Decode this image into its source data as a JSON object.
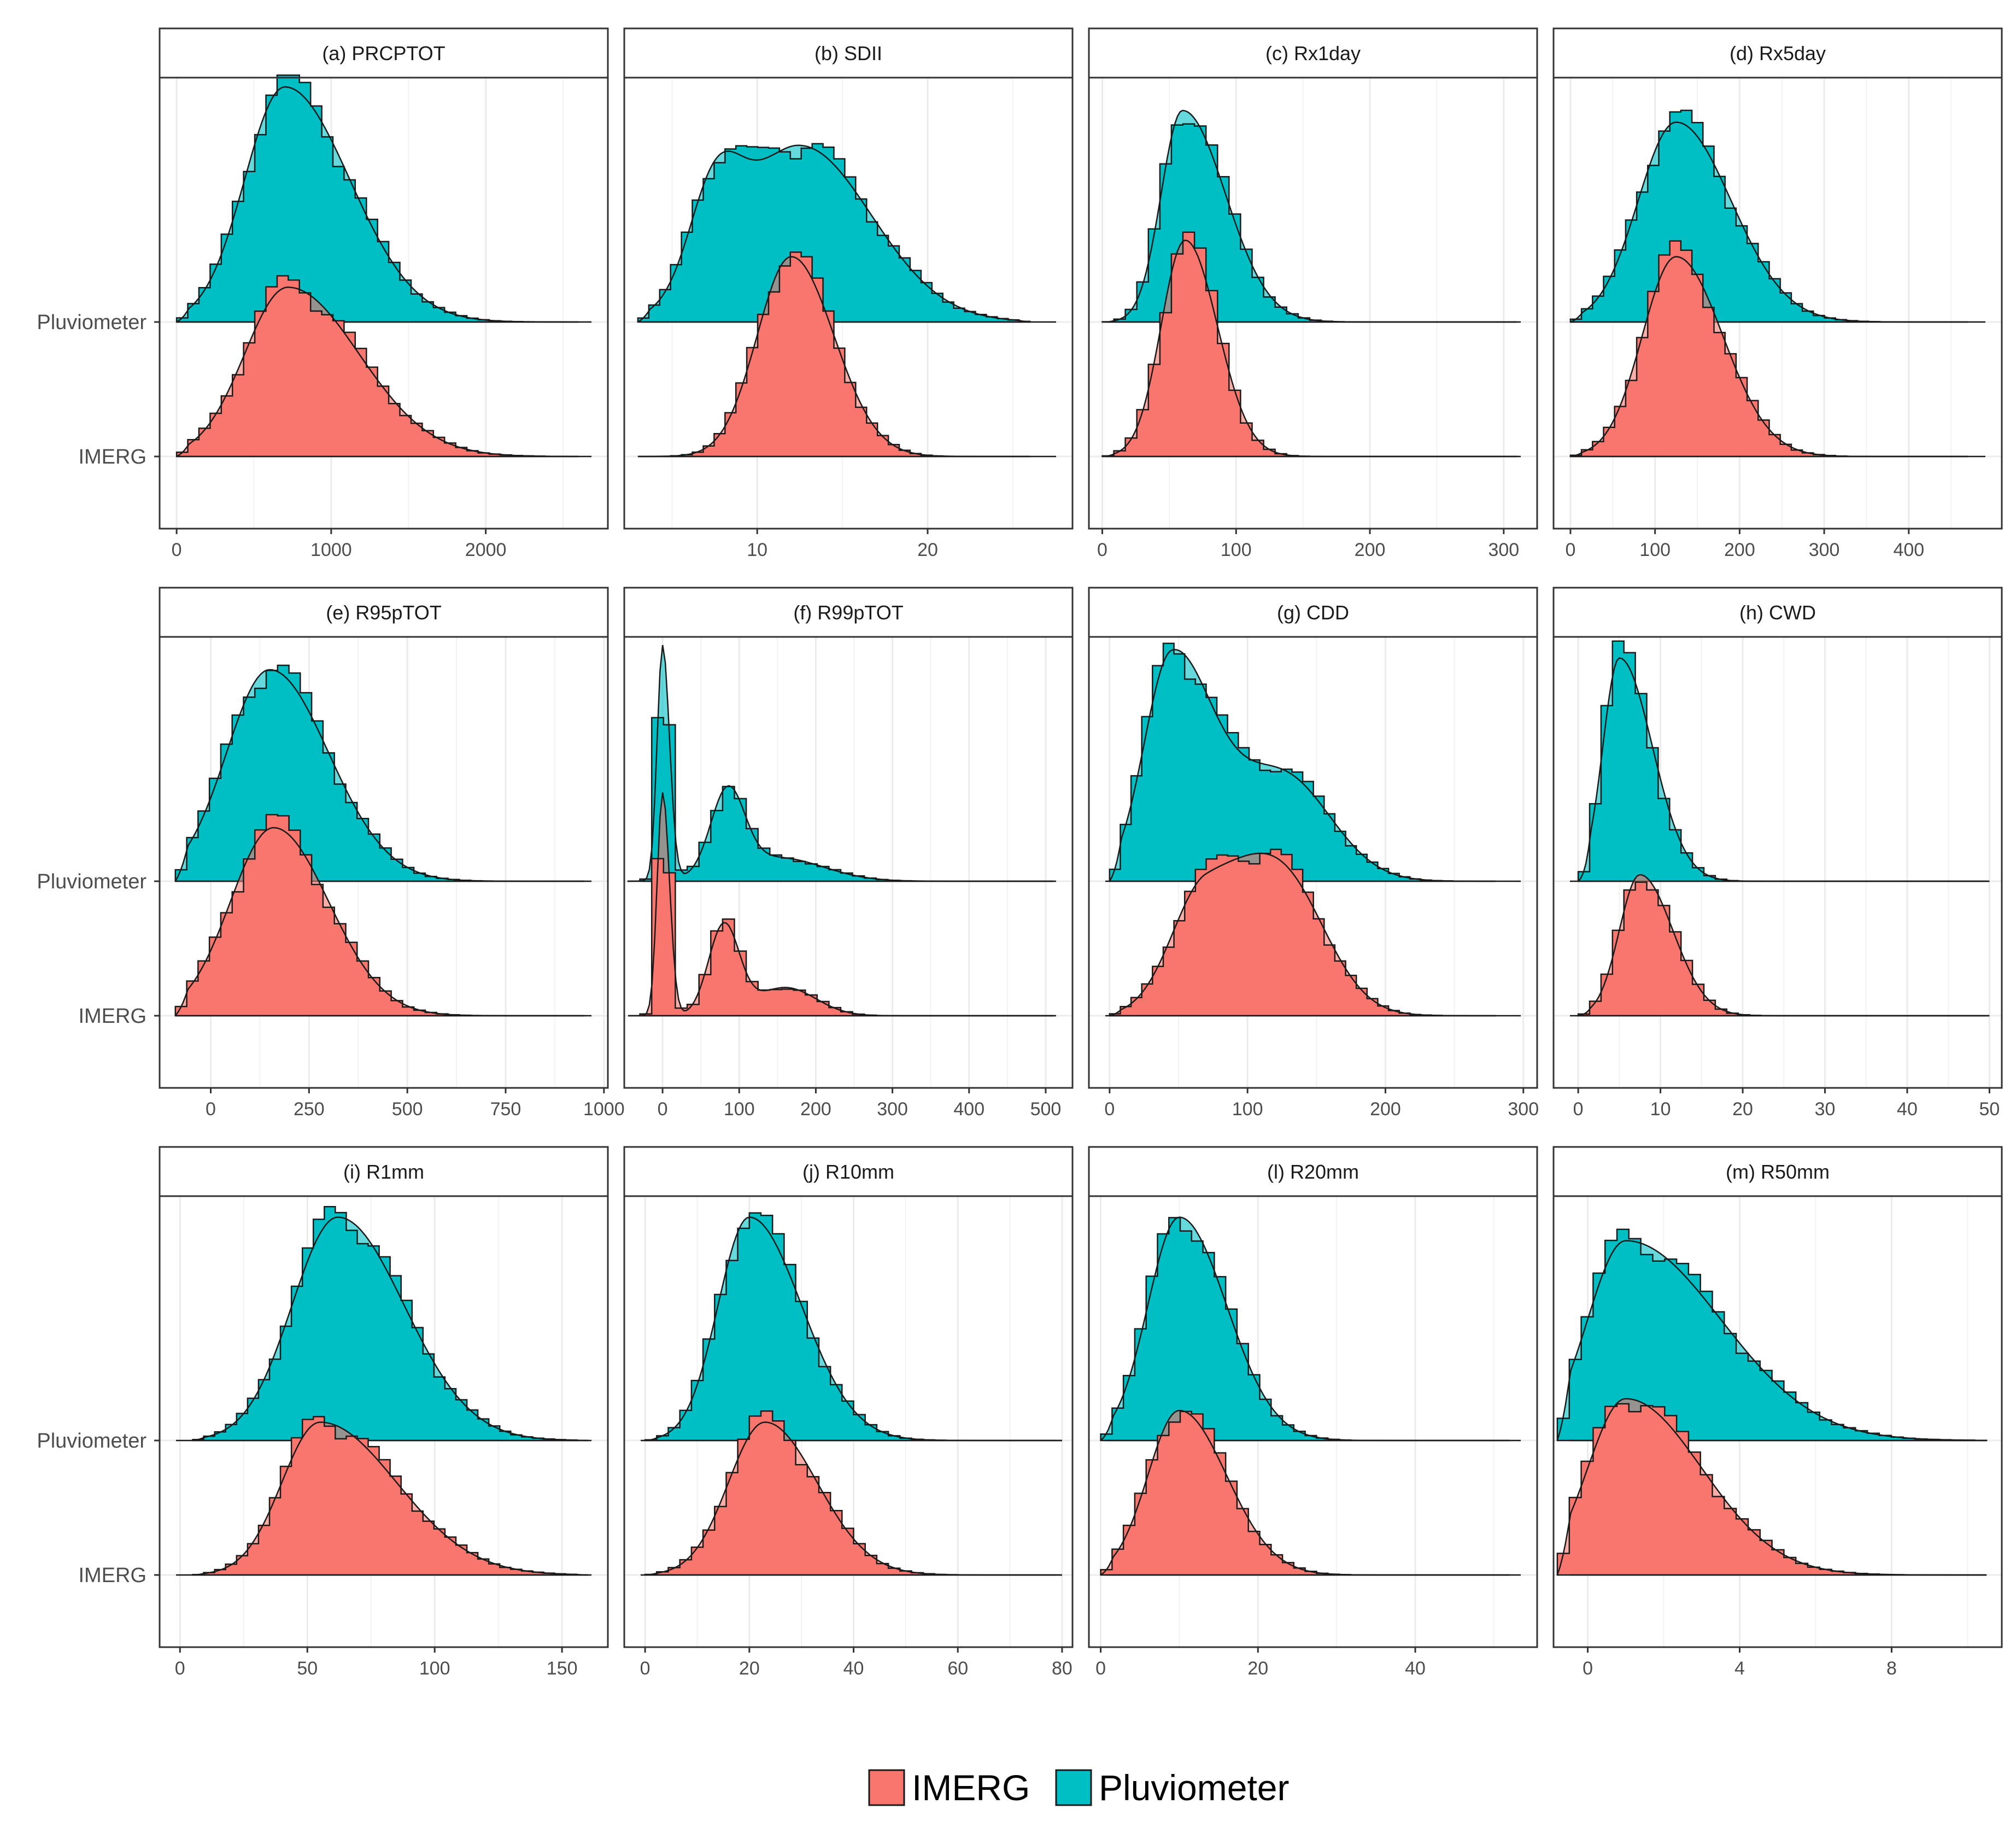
{
  "colors": {
    "imerg": "#f8766d",
    "pluviometer": "#00bfc4",
    "outline": "#1a1a1a",
    "grid": "#ebebeb",
    "strip": "#ffffff",
    "panel_border": "#333333"
  },
  "legend": {
    "items": [
      {
        "name": "IMERG",
        "color": "#f8766d"
      },
      {
        "name": "Pluviometer",
        "color": "#00bfc4"
      }
    ]
  },
  "chart_data": {
    "type": "ridgeline-histogram-density",
    "y_categories": [
      "Pluviometer",
      "IMERG"
    ],
    "series_names": [
      "IMERG",
      "Pluviometer"
    ],
    "panels": [
      {
        "title": "(a) PRCPTOT",
        "xlim": [
          -110,
          2790
        ],
        "ticks": [
          0,
          1000,
          2000
        ],
        "tick_labels": [
          "0",
          "1000",
          "2000"
        ],
        "minor_ticks": [
          500,
          1500,
          2500
        ],
        "density": {
          "Pluviometer": {
            "mode": 700,
            "peak": 1.0,
            "sd_left": 260,
            "sd_right": 420,
            "min": 0,
            "max": 2600
          },
          "IMERG": {
            "mode": 720,
            "peak": 0.72,
            "sd_left": 280,
            "sd_right": 460,
            "min": 0,
            "max": 2600
          }
        }
      },
      {
        "title": "(b) SDII",
        "xlim": [
          2.2,
          28.5
        ],
        "ticks": [
          10,
          20
        ],
        "tick_labels": [
          "10",
          "20"
        ],
        "minor_ticks": [
          5,
          15,
          25
        ],
        "density": {
          "Pluviometer": {
            "mode": 12.5,
            "peak": 0.75,
            "sd_left": 3.6,
            "sd_right": 4.2,
            "min": 3,
            "max": 26,
            "secondary": {
              "mode": 7.5,
              "peak": 0.4,
              "sd": 1.5
            }
          },
          "IMERG": {
            "mode": 12.0,
            "peak": 0.85,
            "sd_left": 2.0,
            "sd_right": 2.5,
            "min": 3,
            "max": 26
          }
        }
      },
      {
        "title": "(c) Rx1day",
        "xlim": [
          -10,
          325
        ],
        "ticks": [
          0,
          100,
          200,
          300
        ],
        "tick_labels": [
          "0",
          "100",
          "200",
          "300"
        ],
        "minor_ticks": [
          50,
          150,
          250
        ],
        "density": {
          "Pluviometer": {
            "mode": 60,
            "peak": 0.9,
            "sd_left": 16,
            "sd_right": 32,
            "min": 0,
            "max": 310
          },
          "IMERG": {
            "mode": 62,
            "peak": 0.92,
            "sd_left": 18,
            "sd_right": 24,
            "min": 0,
            "max": 310
          }
        }
      },
      {
        "title": "(d) Rx5day",
        "xlim": [
          -20,
          510
        ],
        "ticks": [
          0,
          100,
          200,
          300,
          400
        ],
        "tick_labels": [
          "0",
          "100",
          "200",
          "300",
          "400"
        ],
        "minor_ticks": [
          50,
          150,
          250,
          350,
          450
        ],
        "density": {
          "Pluviometer": {
            "mode": 125,
            "peak": 0.85,
            "sd_left": 45,
            "sd_right": 65,
            "min": 0,
            "max": 470
          },
          "IMERG": {
            "mode": 125,
            "peak": 0.85,
            "sd_left": 40,
            "sd_right": 55,
            "min": 0,
            "max": 470
          }
        }
      },
      {
        "title": "(e) R95pTOT",
        "xlim": [
          -130,
          1010
        ],
        "ticks": [
          0,
          250,
          500,
          750,
          1000
        ],
        "tick_labels": [
          "0",
          "250",
          "500",
          "750",
          "1000"
        ],
        "minor_ticks": [
          125,
          375,
          625,
          875
        ],
        "density": {
          "Pluviometer": {
            "mode": 150,
            "peak": 0.9,
            "sd_left": 110,
            "sd_right": 150,
            "min": -90,
            "max": 950
          },
          "IMERG": {
            "mode": 160,
            "peak": 0.8,
            "sd_left": 110,
            "sd_right": 140,
            "min": -90,
            "max": 950
          }
        }
      },
      {
        "title": "(f) R99pTOT",
        "xlim": [
          -50,
          535
        ],
        "ticks": [
          0,
          100,
          200,
          300,
          400,
          500
        ],
        "tick_labels": [
          "0",
          "100",
          "200",
          "300",
          "400",
          "500"
        ],
        "minor_ticks": [
          50,
          150,
          250,
          350,
          450
        ],
        "density": {
          "Pluviometer": {
            "mode": 0,
            "peak": 1.0,
            "sd_left": 7,
            "sd_right": 9,
            "min": -45,
            "max": 510,
            "secondary": {
              "mode": 85,
              "peak": 0.35,
              "sd": 22
            },
            "tail": {
              "mode": 150,
              "peak": 0.1,
              "sd": 60
            }
          },
          "IMERG": {
            "mode": 0,
            "peak": 0.95,
            "sd_left": 7,
            "sd_right": 9,
            "min": -45,
            "max": 510,
            "secondary": {
              "mode": 80,
              "peak": 0.38,
              "sd": 20
            },
            "tail": {
              "mode": 160,
              "peak": 0.12,
              "sd": 40
            }
          }
        }
      },
      {
        "title": "(g) CDD",
        "xlim": [
          -15,
          310
        ],
        "ticks": [
          0,
          100,
          200,
          300
        ],
        "tick_labels": [
          "0",
          "100",
          "200",
          "300"
        ],
        "minor_ticks": [
          50,
          150,
          250
        ],
        "density": {
          "Pluviometer": {
            "mode": 45,
            "peak": 0.95,
            "sd_left": 20,
            "sd_right": 30,
            "min": 0,
            "max": 280,
            "secondary": {
              "mode": 125,
              "peak": 0.45,
              "sd": 35
            }
          },
          "IMERG": {
            "mode": 70,
            "peak": 0.55,
            "sd_left": 25,
            "sd_right": 45,
            "min": 0,
            "max": 280,
            "secondary": {
              "mode": 130,
              "peak": 0.4,
              "sd": 30
            }
          }
        }
      },
      {
        "title": "(h) CWD",
        "xlim": [
          -3,
          51.5
        ],
        "ticks": [
          0,
          10,
          20,
          30,
          40,
          50
        ],
        "tick_labels": [
          "0",
          "10",
          "20",
          "30",
          "40",
          "50"
        ],
        "minor_ticks": [
          5,
          15,
          25,
          35,
          45
        ],
        "density": {
          "Pluviometer": {
            "mode": 5,
            "peak": 0.95,
            "sd_left": 2,
            "sd_right": 4,
            "min": 0,
            "max": 50
          },
          "IMERG": {
            "mode": 7.5,
            "peak": 0.6,
            "sd_left": 2.5,
            "sd_right": 4,
            "min": 0,
            "max": 50
          }
        }
      },
      {
        "title": "(i) R1mm",
        "xlim": [
          -8,
          168
        ],
        "ticks": [
          0,
          50,
          100,
          150
        ],
        "tick_labels": [
          "0",
          "50",
          "100",
          "150"
        ],
        "minor_ticks": [
          25,
          75,
          125
        ],
        "density": {
          "Pluviometer": {
            "mode": 62,
            "peak": 0.95,
            "sd_left": 18,
            "sd_right": 26,
            "min": 5,
            "max": 160
          },
          "IMERG": {
            "mode": 55,
            "peak": 0.65,
            "sd_left": 15,
            "sd_right": 30,
            "min": 5,
            "max": 160
          }
        }
      },
      {
        "title": "(j) R10mm",
        "xlim": [
          -4,
          82
        ],
        "ticks": [
          0,
          20,
          40,
          60,
          80
        ],
        "tick_labels": [
          "0",
          "20",
          "40",
          "60",
          "80"
        ],
        "minor_ticks": [
          10,
          30,
          50,
          70
        ],
        "density": {
          "Pluviometer": {
            "mode": 20,
            "peak": 0.95,
            "sd_left": 6,
            "sd_right": 10,
            "min": 0,
            "max": 80
          },
          "IMERG": {
            "mode": 23,
            "peak": 0.65,
            "sd_left": 7,
            "sd_right": 10,
            "min": 0,
            "max": 80
          }
        }
      },
      {
        "title": "(l) R20mm",
        "xlim": [
          -1.5,
          55.5
        ],
        "ticks": [
          0,
          20,
          40
        ],
        "tick_labels": [
          "0",
          "20",
          "40"
        ],
        "minor_ticks": [
          10,
          30,
          50
        ],
        "density": {
          "Pluviometer": {
            "mode": 10,
            "peak": 0.95,
            "sd_left": 4,
            "sd_right": 6,
            "min": 0,
            "max": 52
          },
          "IMERG": {
            "mode": 10,
            "peak": 0.7,
            "sd_left": 4,
            "sd_right": 6,
            "min": 0,
            "max": 52
          }
        }
      },
      {
        "title": "(m) R50mm",
        "xlim": [
          -0.9,
          10.9
        ],
        "ticks": [
          0,
          4,
          8
        ],
        "tick_labels": [
          "0",
          "4",
          "8"
        ],
        "minor_ticks": [
          2,
          6,
          10
        ],
        "density": {
          "Pluviometer": {
            "mode": 1,
            "peak": 0.85,
            "sd_left": 1.0,
            "sd_right": 2.5,
            "min": -0.8,
            "max": 10.5
          },
          "IMERG": {
            "mode": 1,
            "peak": 0.75,
            "sd_left": 1.0,
            "sd_right": 2.0,
            "min": -0.8,
            "max": 10.5
          }
        }
      }
    ]
  }
}
